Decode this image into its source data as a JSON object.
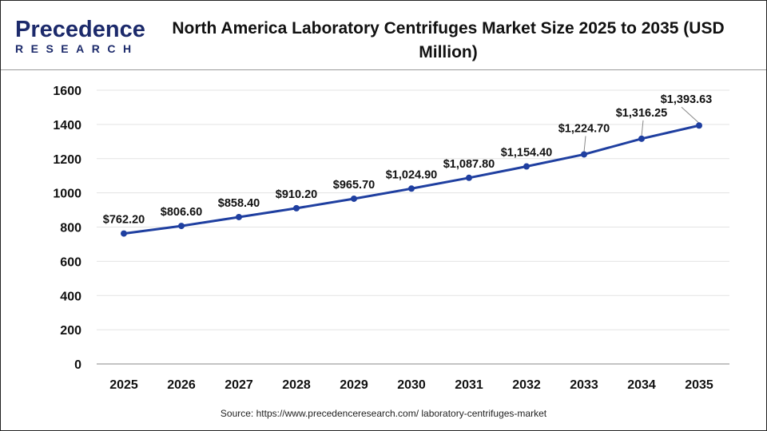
{
  "logo": {
    "line1": "Precedence",
    "line2": "RESEARCH"
  },
  "chart_data": {
    "type": "line",
    "title": "North America Laboratory Centrifuges Market Size 2025 to 2035 (USD Million)",
    "categories": [
      "2025",
      "2026",
      "2027",
      "2028",
      "2029",
      "2030",
      "2031",
      "2032",
      "2033",
      "2034",
      "2035"
    ],
    "values": [
      762.2,
      806.6,
      858.4,
      910.2,
      965.7,
      1024.9,
      1087.8,
      1154.4,
      1224.7,
      1316.25,
      1393.63
    ],
    "data_labels": [
      "$762.20",
      "$806.60",
      "$858.40",
      "$910.20",
      "$965.70",
      "$1,024.90",
      "$1,087.80",
      "$1,154.40",
      "$1,224.70",
      "$1,316.25",
      "$1,393.63"
    ],
    "yticks": [
      "0",
      "200",
      "400",
      "600",
      "800",
      "1000",
      "1200",
      "1400",
      "1600"
    ],
    "ylim": [
      0,
      1600
    ],
    "grid": true,
    "line_color": "#1f3fa0"
  },
  "source": "Source: https://www.precedenceresearch.com/ laboratory-centrifuges-market"
}
